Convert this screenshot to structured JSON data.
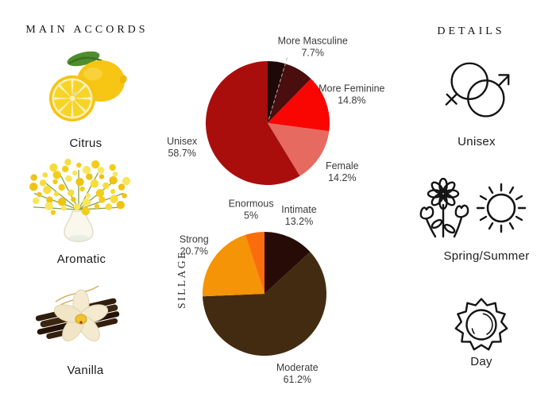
{
  "page": {
    "background": "#ffffff"
  },
  "left_panel": {
    "header": "MAIN ACCORDS",
    "accords": [
      {
        "name": "Citrus",
        "image": "lemon-photo"
      },
      {
        "name": "Aromatic",
        "image": "mimosa-bouquet-photo"
      },
      {
        "name": "Vanilla",
        "image": "vanilla-pods-flower-photo"
      }
    ]
  },
  "right_panel": {
    "header": "DETAILS",
    "details": [
      {
        "label": "Unisex",
        "icon": "gender-unisex-icon"
      },
      {
        "label": "Spring/Summer",
        "icon": "flowers-and-sun-icon"
      },
      {
        "label": "Day",
        "icon": "day-sun-icon"
      }
    ]
  },
  "chart_data": [
    {
      "type": "pie",
      "name": "gender",
      "start_angle_deg": 0,
      "direction": "clockwise",
      "dashed_leader_after_slice": 0,
      "slices": [
        {
          "label": "",
          "value": 4.6,
          "pct_text": "",
          "color": "#1e0808"
        },
        {
          "label": "More Masculine",
          "value": 7.7,
          "pct_text": "7.7%",
          "color": "#4a0e0e"
        },
        {
          "label": "More Feminine",
          "value": 14.8,
          "pct_text": "14.8%",
          "color": "#f90603"
        },
        {
          "label": "Female",
          "value": 14.2,
          "pct_text": "14.2%",
          "color": "#e66a60"
        },
        {
          "label": "Unisex",
          "value": 58.7,
          "pct_text": "58.7%",
          "color": "#a90e0d"
        }
      ]
    },
    {
      "type": "pie",
      "name": "sillage",
      "axis_label": "SILLAGE",
      "start_angle_deg": 0,
      "direction": "clockwise",
      "slices": [
        {
          "label": "Intimate",
          "value": 13.2,
          "pct_text": "13.2%",
          "color": "#270b06"
        },
        {
          "label": "Moderate",
          "value": 61.2,
          "pct_text": "61.2%",
          "color": "#432b11"
        },
        {
          "label": "Strong",
          "value": 20.7,
          "pct_text": "20.7%",
          "color": "#f59407"
        },
        {
          "label": "Enormous",
          "value": 5.0,
          "pct_text": "5%",
          "color": "#fa6d0d"
        }
      ]
    }
  ]
}
